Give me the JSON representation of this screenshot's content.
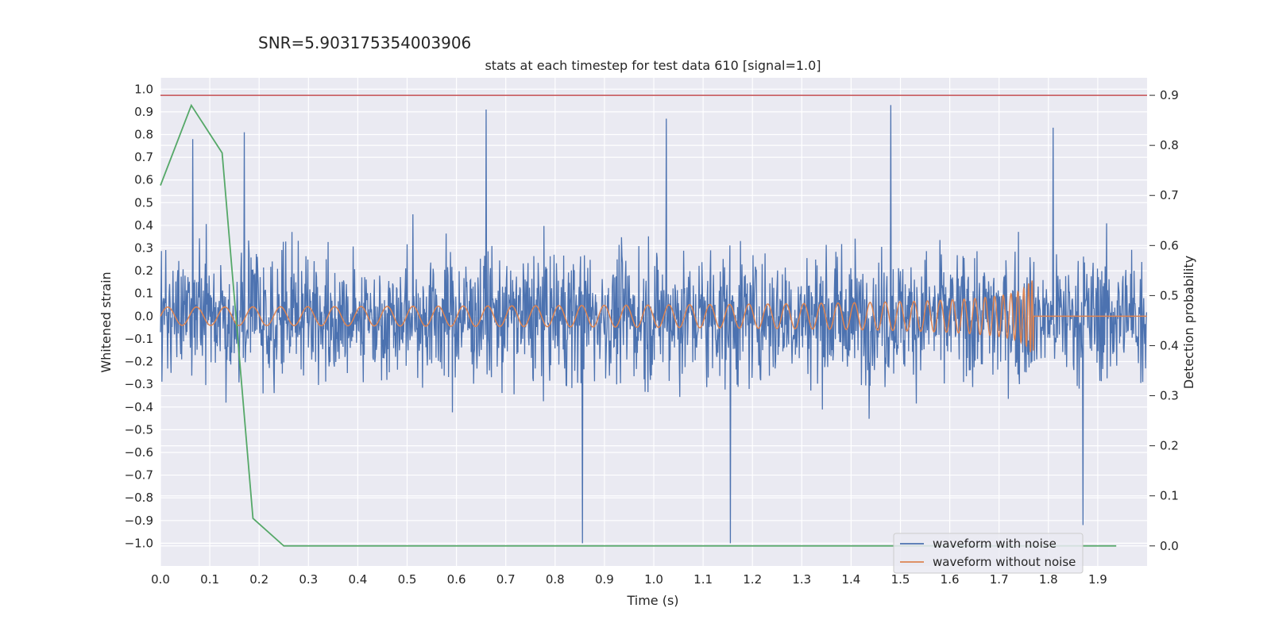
{
  "chart_data": {
    "type": "line",
    "suptitle": "SNR=5.903175354003906",
    "title": "stats at each timestep for test data 610 [signal=1.0]",
    "xlabel": "Time (s)",
    "ylabel": "Whitened strain",
    "ylabel_right": "Detection probability",
    "xlim": [
      0.0,
      2.0
    ],
    "ylim": [
      -1.1,
      1.05
    ],
    "ylim_right": [
      -0.04,
      0.935
    ],
    "xticks": [
      0.0,
      0.1,
      0.2,
      0.3,
      0.4,
      0.5,
      0.6,
      0.7,
      0.8,
      0.9,
      1.0,
      1.1,
      1.2,
      1.3,
      1.4,
      1.5,
      1.6,
      1.7,
      1.8,
      1.9
    ],
    "yticks": [
      1.0,
      0.9,
      0.8,
      0.7,
      0.6,
      0.5,
      0.4,
      0.3,
      0.2,
      0.1,
      0.0,
      -0.1,
      -0.2,
      -0.3,
      -0.4,
      -0.5,
      -0.6,
      -0.7,
      -0.8,
      -0.9,
      -1.0
    ],
    "yticks_right": [
      0.9,
      0.8,
      0.7,
      0.6,
      0.5,
      0.4,
      0.3,
      0.2,
      0.1,
      0.0
    ],
    "grid": true,
    "legend_position": "lower right",
    "colors": {
      "background": "#eaeaf2",
      "grid": "#ffffff",
      "with_noise": "#4c72b0",
      "without_noise": "#dd8452",
      "probability": "#55a868",
      "threshold": "#c44e52"
    },
    "series": [
      {
        "name": "waveform with noise",
        "axis": "left",
        "description_points": "noisy whitened strain, ~2048 samples, values mostly within [-0.9, 0.93], clipped at -1.0 near t=0.855 and t=1.155",
        "peaks": [
          {
            "x": 0.065,
            "y": 0.78
          },
          {
            "x": 0.17,
            "y": 0.81
          },
          {
            "x": 0.66,
            "y": 0.91
          },
          {
            "x": 1.025,
            "y": 0.87
          },
          {
            "x": 1.48,
            "y": 0.93
          },
          {
            "x": 1.81,
            "y": 0.83
          },
          {
            "x": 0.855,
            "y": -1.0
          },
          {
            "x": 1.155,
            "y": -1.0
          },
          {
            "x": 1.87,
            "y": -0.92
          }
        ]
      },
      {
        "name": "waveform without noise",
        "axis": "left",
        "description_points": "chirp signal, amplitude ~0.04 rising to ~0.16, frequency increasing, merger at t≈1.77 s, zero after 1.78 s"
      },
      {
        "name": "detection probability",
        "axis": "right",
        "x": [
          0.0,
          0.0625,
          0.125,
          0.1875,
          0.25,
          0.3125,
          0.375,
          0.4375,
          0.5,
          0.5625,
          0.625,
          0.6875,
          0.75,
          0.8125,
          0.875,
          0.9375,
          1.0,
          1.0625,
          1.125,
          1.1875,
          1.25,
          1.3125,
          1.375,
          1.4375,
          1.5,
          1.5625,
          1.625,
          1.6875,
          1.75,
          1.8125,
          1.875,
          1.9375
        ],
        "y": [
          0.72,
          0.88,
          0.785,
          0.055,
          0.0,
          0.0,
          0.0,
          0.0,
          0.0,
          0.0,
          0.0,
          0.0,
          0.0,
          0.0,
          0.0,
          0.0,
          0.0,
          0.0,
          0.0,
          0.0,
          0.0,
          0.0,
          0.0,
          0.0,
          0.0,
          0.0,
          0.0,
          0.0,
          0.0,
          0.0,
          0.0,
          0.0
        ]
      },
      {
        "name": "threshold",
        "axis": "right",
        "y": 0.9
      }
    ]
  }
}
